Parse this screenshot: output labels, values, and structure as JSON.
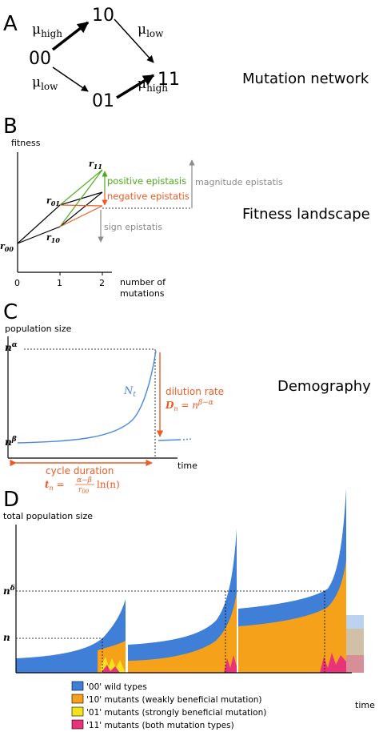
{
  "panels": {
    "a": {
      "letter": "A",
      "title": "Mutation network",
      "nodes": [
        "00",
        "10",
        "01",
        "11"
      ],
      "rates": {
        "mu": "μ",
        "high": "high",
        "low": "low"
      }
    },
    "b": {
      "letter": "B",
      "title": "Fitness landscape",
      "ylabel": "fitness",
      "xlabel_line1": "number of",
      "xlabel_line2": "mutations",
      "ticks": [
        "0",
        "1",
        "2"
      ],
      "points": {
        "r_main": "r",
        "r00": "00",
        "r10": "10",
        "r01": "01",
        "r11": "11"
      },
      "positive": "positive epistasis",
      "negative": "negative epistatis",
      "magnitude": "magnitude epistatis",
      "sign": "sign epistatis"
    },
    "c": {
      "letter": "C",
      "title": "Demography",
      "ylabel": "population size",
      "xlabel": "time",
      "n_alpha_base": "n",
      "n_alpha_exp": "α",
      "n_beta_base": "n",
      "n_beta_exp": "β",
      "curve_label_base": "N",
      "curve_label_sub": "t",
      "dilution_label": "dilution rate",
      "dilution_formula_lhs": "D",
      "dilution_formula_sub": "n",
      "dilution_formula_eq": " = n",
      "dilution_formula_exp": "β−α",
      "cycle_label": "cycle duration",
      "cycle_formula_lhs": "t",
      "cycle_formula_sub": "n",
      "cycle_formula_eq": " = ",
      "cycle_frac_num": "α−β",
      "cycle_frac_den": "r",
      "cycle_frac_den_sub": "00",
      "cycle_formula_tail": "ln(n)"
    },
    "d": {
      "letter": "D",
      "ylabel": "total population size",
      "xlabel": "time",
      "n_delta_base": "n",
      "n_delta_exp": "δ",
      "n_label": "n",
      "legend": [
        {
          "label": "'00' wild types",
          "color": "#3f7fd8"
        },
        {
          "label": "'10' mutants (weakly beneficial mutation)",
          "color": "#f5a21a"
        },
        {
          "label": "'01' mutants (strongly beneficial mutation)",
          "color": "#f7e11c"
        },
        {
          "label": "'11' mutants (both mutation types)",
          "color": "#e8327a"
        }
      ]
    }
  },
  "colors": {
    "green": "#4caa1e",
    "orange": "#ec5b24",
    "gray": "#8a8a8a",
    "curve_blue": "#4a8ad8",
    "wild": "#3f7fd8",
    "weak": "#f5a21a",
    "strong": "#f7e11c",
    "both": "#e8327a"
  }
}
